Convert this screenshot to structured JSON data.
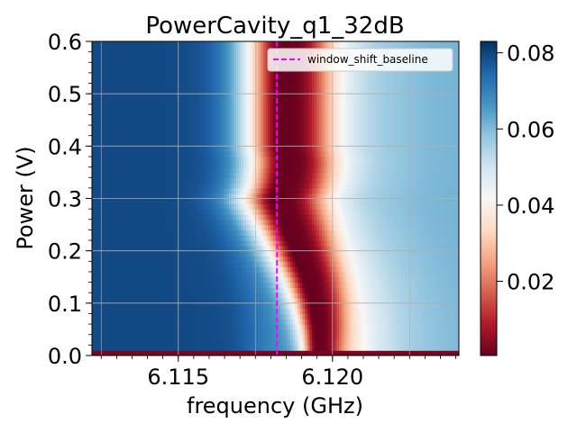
{
  "chart_data": {
    "type": "heatmap",
    "title": "PowerCavity_q1_32dB",
    "xlabel": "frequency (GHz)",
    "ylabel": "Power (V)",
    "xlim": [
      6.1122,
      6.1241
    ],
    "ylim": [
      0.0,
      0.6
    ],
    "x_ticks": [
      6.115,
      6.12
    ],
    "x_tick_labels": [
      "6.115",
      "6.120"
    ],
    "y_ticks": [
      0.0,
      0.1,
      0.2,
      0.3,
      0.4,
      0.5,
      0.6
    ],
    "y_tick_labels": [
      "0.0",
      "0.1",
      "0.2",
      "0.3",
      "0.4",
      "0.5",
      "0.6"
    ],
    "grid": true,
    "colormap": "RdBu",
    "colorbar": {
      "min": 0.0005,
      "max": 0.083,
      "ticks": [
        0.02,
        0.04,
        0.06,
        0.08
      ],
      "tick_labels": [
        "0.02",
        "0.04",
        "0.06",
        "0.08"
      ]
    },
    "legend": {
      "placement": "top-right",
      "entries": [
        "window_shift_baseline"
      ]
    },
    "series": [
      {
        "name": "window_shift_baseline",
        "type": "vline",
        "x": 6.1182,
        "color": "#ff00ff",
        "style": "dashed"
      }
    ],
    "resonance_dip": {
      "description_ref": "minimum of transmission vs power",
      "power": [
        0.0,
        0.01,
        0.05,
        0.1,
        0.15,
        0.2,
        0.25,
        0.28,
        0.3,
        0.33,
        0.37,
        0.4,
        0.45,
        0.5,
        0.55,
        0.6
      ],
      "frequency": [
        6.1189,
        6.1196,
        6.1196,
        6.1195,
        6.1193,
        6.119,
        6.1187,
        6.1185,
        6.1184,
        6.1186,
        6.1187,
        6.1186,
        6.1186,
        6.1186,
        6.1186,
        6.1186
      ],
      "min_value": 0.001,
      "low_plateau_value": 0.079,
      "high_plateau_value": 0.062
    }
  }
}
